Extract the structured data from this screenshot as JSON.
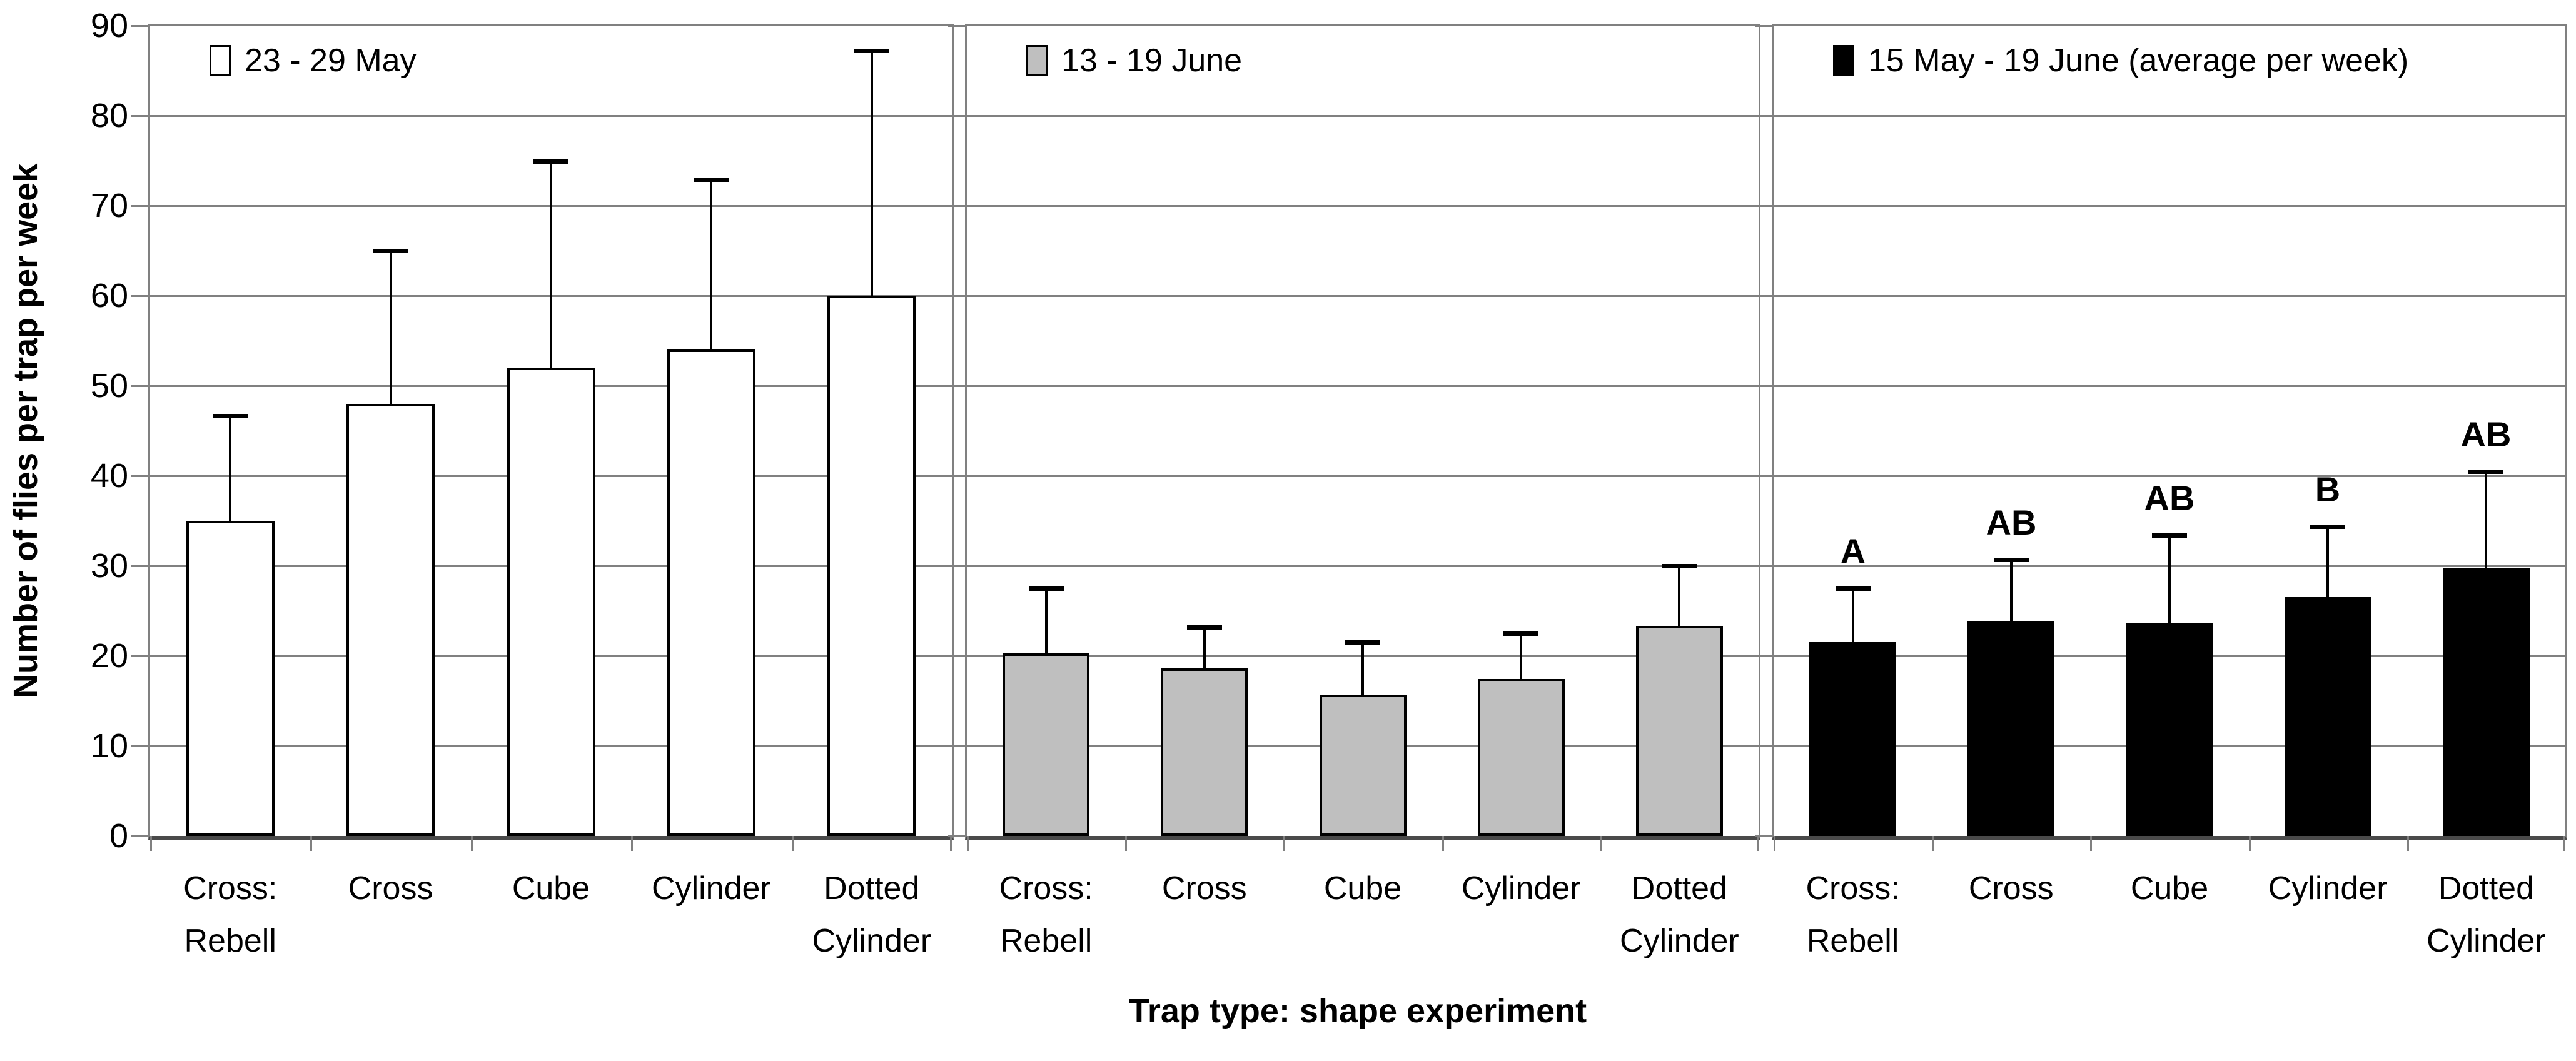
{
  "chart_data": {
    "type": "bar",
    "xlabel": "Trap type: shape experiment",
    "ylabel": "Number of flies per trap per week",
    "ylim": [
      0,
      90
    ],
    "yticks": [
      0,
      10,
      20,
      30,
      40,
      50,
      60,
      70,
      80,
      90
    ],
    "grid": "horizontal",
    "error_bars": "upper-only",
    "legend_position": "top-left inside each panel",
    "categories": [
      "Cross: Rebell",
      "Cross",
      "Cube",
      "Cylinder",
      "Dotted Cylinder"
    ],
    "panels": [
      {
        "legend": "23 - 29 May",
        "bar_fill": "#ffffff",
        "values": [
          35,
          48,
          52,
          54,
          60
        ],
        "error_top": [
          46.7,
          65,
          74.9,
          72.9,
          87.2
        ]
      },
      {
        "legend": "13 - 19 June",
        "bar_fill": "#bfbfbf",
        "values": [
          20.3,
          18.6,
          15.7,
          17.4,
          23.3
        ],
        "error_top": [
          27.5,
          23.2,
          21.5,
          22.5,
          30
        ]
      },
      {
        "legend": "15 May - 19 June (average per week)",
        "bar_fill": "#000000",
        "values": [
          21.5,
          23.8,
          23.6,
          26.5,
          29.8
        ],
        "error_top": [
          27.5,
          30.7,
          33.4,
          34.4,
          40.5
        ],
        "sig_letters": [
          "A",
          "AB",
          "AB",
          "B",
          "AB"
        ]
      }
    ],
    "colors": {
      "grid": "#808080",
      "axis_line": "#4a4a4a",
      "bar_outline": "#000000",
      "gray_fill": "#bfbfbf"
    }
  }
}
